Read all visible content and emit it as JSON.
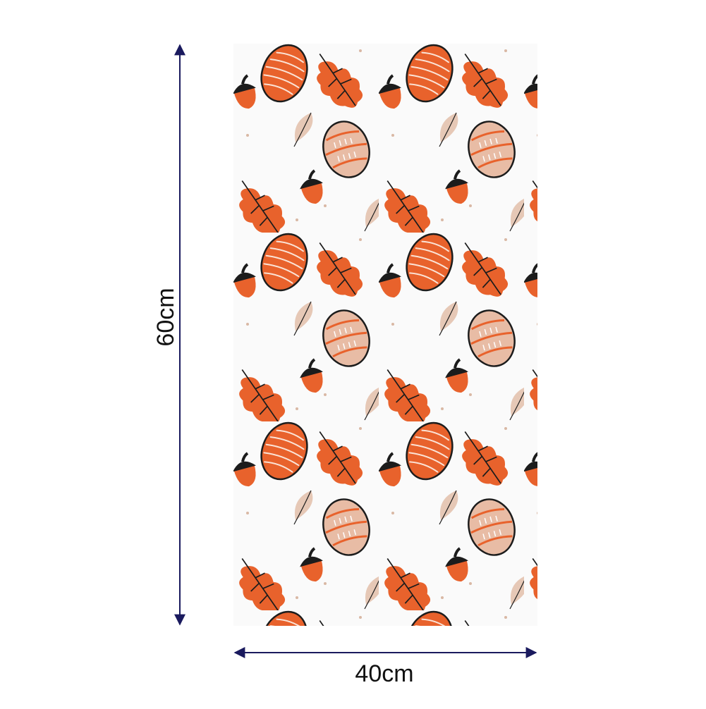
{
  "dimensions": {
    "height_label": "60cm",
    "width_label": "40cm"
  }
}
